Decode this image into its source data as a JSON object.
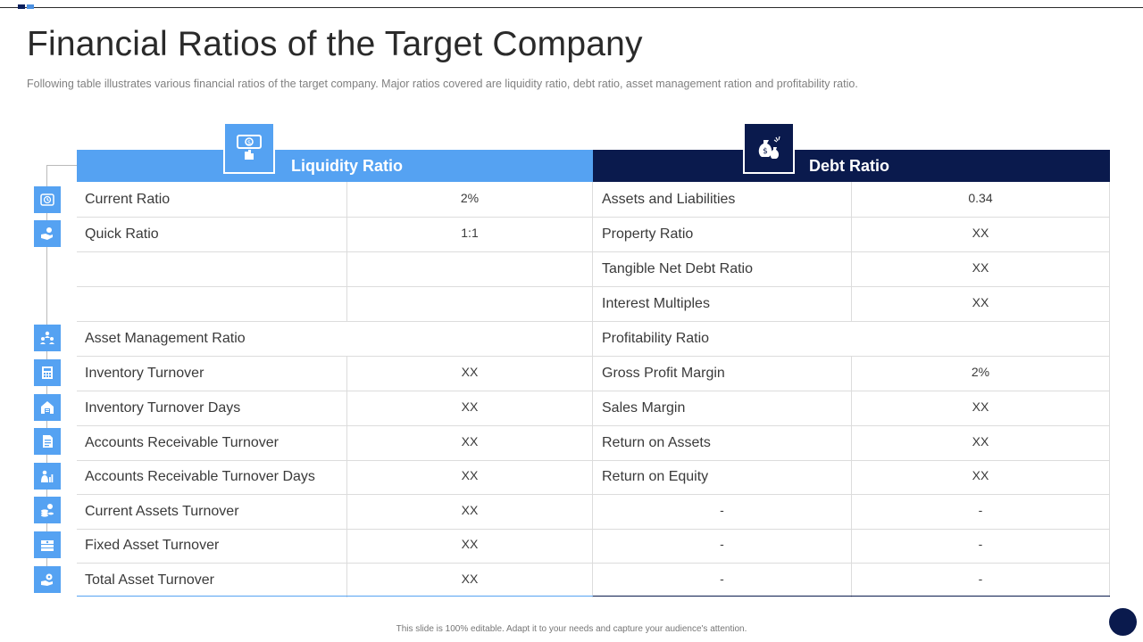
{
  "page": {
    "title": "Financial Ratios of the Target Company",
    "subtitle": "Following table illustrates various financial ratios of the target company. Major ratios covered  are liquidity ratio, debt ratio, asset management ration and profitability ratio.",
    "footer": "This slide is 100% editable.  Adapt it to your needs and capture your audience's attention."
  },
  "colors": {
    "light_blue": "#55a2f2",
    "navy": "#0a1a4d"
  },
  "headers": {
    "left": "Liquidity Ratio",
    "right": "Debt Ratio"
  },
  "header_icons": {
    "left": "money-hand-icon",
    "right": "money-bags-icon"
  },
  "rows": [
    {
      "icon": "clock-icon",
      "c1": "Current Ratio",
      "c2": "2%",
      "c3": "Assets and Liabilities",
      "c4": "0.34"
    },
    {
      "icon": "hand-coin-icon",
      "c1": "Quick Ratio",
      "c2": "1:1",
      "c3": "Property Ratio",
      "c4": "XX"
    },
    {
      "c1": "",
      "c2": "",
      "c3": "Tangible Net Debt Ratio",
      "c4": "XX"
    },
    {
      "c1": "",
      "c2": "",
      "c3": "Interest  Multiples",
      "c4": "XX"
    },
    {
      "icon": "team-icon",
      "section_left": "Asset Management Ratio",
      "section_right": "Profitability Ratio"
    },
    {
      "icon": "calculator-icon",
      "c1": "Inventory  Turnover",
      "c2": "XX",
      "c3": "Gross Profit Margin",
      "c4": "2%"
    },
    {
      "icon": "warehouse-icon",
      "c1": "Inventory  Turnover  Days",
      "c2": "XX",
      "c3": "Sales Margin",
      "c4": "XX"
    },
    {
      "icon": "document-icon",
      "c1": "Accounts Receivable Turnover",
      "c2": "XX",
      "c3": "Return on Assets",
      "c4": "XX"
    },
    {
      "icon": "person-chart-icon",
      "c1": "Accounts Receivable Turnover  Days",
      "c2": "XX",
      "c3": "Return on Equity",
      "c4": "XX"
    },
    {
      "icon": "coins-icon",
      "c1": "Current Assets Turnover",
      "c2": "XX",
      "c3": "-",
      "c4": "-"
    },
    {
      "icon": "cash-icon",
      "c1": "Fixed Asset Turnover",
      "c2": "XX",
      "c3": "-",
      "c4": "-"
    },
    {
      "icon": "gear-hand-icon",
      "c1": "Total Asset Turnover",
      "c2": "XX",
      "c3": "-",
      "c4": "-"
    }
  ]
}
